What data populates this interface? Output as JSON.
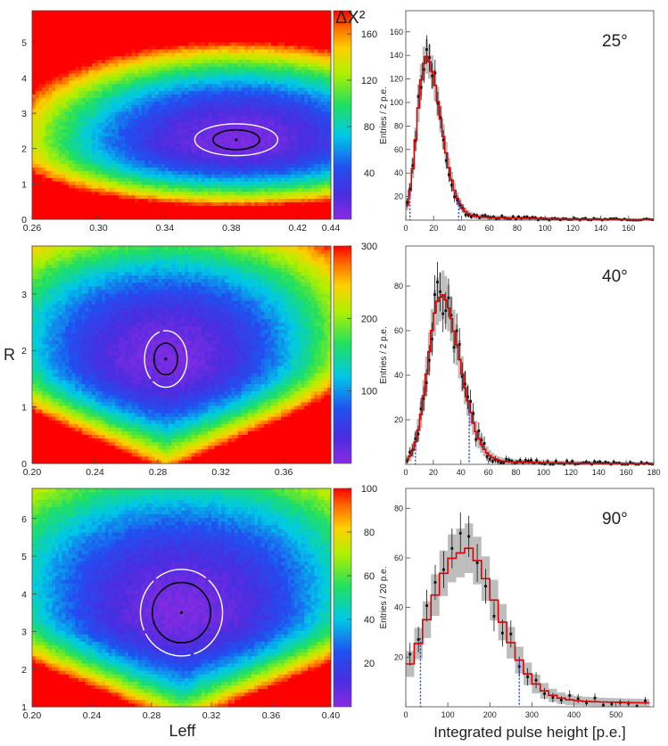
{
  "chart_data": [
    {
      "type": "heatmap",
      "id": "map-25",
      "xlim": [
        0.26,
        0.44
      ],
      "ylim": [
        0,
        5.9
      ],
      "xticks": [
        "0.26",
        "0.30",
        "0.34",
        "0.38",
        "0.42",
        "0.44"
      ],
      "xtick_values": [
        0.26,
        0.3,
        0.34,
        0.38,
        0.42,
        0.44
      ],
      "yticks": [
        "0",
        "1",
        "2",
        "3",
        "4",
        "5"
      ],
      "ytick_values": [
        0,
        1,
        2,
        3,
        4,
        5
      ],
      "best_fit": {
        "Leff": 0.383,
        "R": 2.25
      },
      "contour_inner": {
        "rx": 0.014,
        "ry": 0.28
      },
      "contour_outer": {
        "rx": 0.025,
        "ry": 0.45
      },
      "colorbar": {
        "title": "ΔΧ²",
        "min": 0,
        "max": 180,
        "ticks": [
          "40",
          "80",
          "120",
          "160"
        ],
        "tick_values": [
          40,
          80,
          120,
          160
        ]
      },
      "ylabel": "",
      "xlabel": ""
    },
    {
      "type": "heatmap",
      "id": "map-40",
      "xlim": [
        0.2,
        0.39
      ],
      "ylim": [
        0,
        3.85
      ],
      "xticks": [
        "0.20",
        "0.24",
        "0.28",
        "0.32",
        "0.36"
      ],
      "xtick_values": [
        0.2,
        0.24,
        0.28,
        0.32,
        0.36
      ],
      "yticks": [
        "0",
        "1",
        "2",
        "3"
      ],
      "ytick_values": [
        0,
        1,
        2,
        3
      ],
      "best_fit": {
        "Leff": 0.285,
        "R": 1.85
      },
      "contour_inner": {
        "rx": 0.0075,
        "ry": 0.28
      },
      "contour_outer": {
        "rx": 0.0135,
        "ry": 0.5
      },
      "colorbar": {
        "min": 0,
        "max": 300,
        "ticks": [
          "100",
          "200",
          "300"
        ],
        "tick_values": [
          100,
          200,
          300
        ]
      },
      "ylabel": "R",
      "xlabel": ""
    },
    {
      "type": "heatmap",
      "id": "map-90",
      "xlim": [
        0.2,
        0.4
      ],
      "ylim": [
        1,
        6.8
      ],
      "xticks": [
        "0.20",
        "0.24",
        "0.28",
        "0.32",
        "0.36",
        "0.40"
      ],
      "xtick_values": [
        0.2,
        0.24,
        0.28,
        0.32,
        0.36,
        0.4
      ],
      "yticks": [
        "1",
        "2",
        "3",
        "4",
        "5",
        "6"
      ],
      "ytick_values": [
        1,
        2,
        3,
        4,
        5,
        6
      ],
      "best_fit": {
        "Leff": 0.3,
        "R": 3.5
      },
      "contour_inner": {
        "rx": 0.0195,
        "ry": 0.8
      },
      "contour_outer": {
        "rx": 0.0275,
        "ry": 1.15
      },
      "colorbar": {
        "min": 0,
        "max": 100,
        "ticks": [
          "20",
          "40",
          "60",
          "80",
          "100"
        ],
        "tick_values": [
          20,
          40,
          60,
          80,
          100
        ]
      },
      "ylabel": "",
      "xlabel": "Leff"
    },
    {
      "type": "bar",
      "id": "hist-25",
      "annotation": "25°",
      "ylabel": "Entries / 2 p.e.",
      "xlabel": "",
      "xlim": [
        0,
        178
      ],
      "ylim": [
        0,
        178
      ],
      "xticks": [
        "0",
        "20",
        "40",
        "60",
        "80",
        "100",
        "120",
        "140",
        "160"
      ],
      "xtick_values": [
        0,
        20,
        40,
        60,
        80,
        100,
        120,
        140,
        160
      ],
      "yticks": [
        "20",
        "40",
        "60",
        "80",
        "100",
        "120",
        "140",
        "160"
      ],
      "ytick_values": [
        20,
        40,
        60,
        80,
        100,
        120,
        140,
        160
      ],
      "bin_width": 2,
      "fit_peak": 14,
      "fit_amp": 135,
      "fit_sigma_left": 6,
      "fit_sigma_right": 11,
      "fit_tail": 0.035,
      "cut_lines": [
        3,
        38
      ]
    },
    {
      "type": "bar",
      "id": "hist-40",
      "annotation": "40°",
      "ylabel": "Entries / 2 p.e.",
      "xlabel": "",
      "xlim": [
        0,
        180
      ],
      "ylim": [
        0,
        98
      ],
      "xticks": [
        "0",
        "20",
        "40",
        "60",
        "80",
        "100",
        "120",
        "140",
        "160",
        "180"
      ],
      "xtick_values": [
        0,
        20,
        40,
        60,
        80,
        100,
        120,
        140,
        160,
        180
      ],
      "yticks": [
        "20",
        "40",
        "60",
        "80"
      ],
      "ytick_values": [
        20,
        40,
        60,
        80
      ],
      "bin_width": 2,
      "fit_peak": 25,
      "fit_amp": 75,
      "fit_sigma_left": 9,
      "fit_sigma_right": 14,
      "fit_tail": 0.025,
      "cut_lines": [
        7,
        46
      ]
    },
    {
      "type": "bar",
      "id": "hist-90",
      "annotation": "90°",
      "ylabel": "Entries / 20 p.e.",
      "xlabel": "Integrated pulse height [p.e.]",
      "xlim": [
        0,
        590
      ],
      "ylim": [
        0,
        88
      ],
      "xticks": [
        "0",
        "100",
        "200",
        "300",
        "400",
        "500"
      ],
      "xtick_values": [
        0,
        100,
        200,
        300,
        400,
        500
      ],
      "yticks": [
        "20",
        "40",
        "60",
        "80"
      ],
      "ytick_values": [
        20,
        40,
        60,
        80
      ],
      "bin_width": 20,
      "fit_peak": 130,
      "fit_amp": 62,
      "fit_sigma_left": 75,
      "fit_sigma_right": 85,
      "fit_tail": 0.06,
      "cut_lines": [
        35,
        270
      ]
    }
  ]
}
